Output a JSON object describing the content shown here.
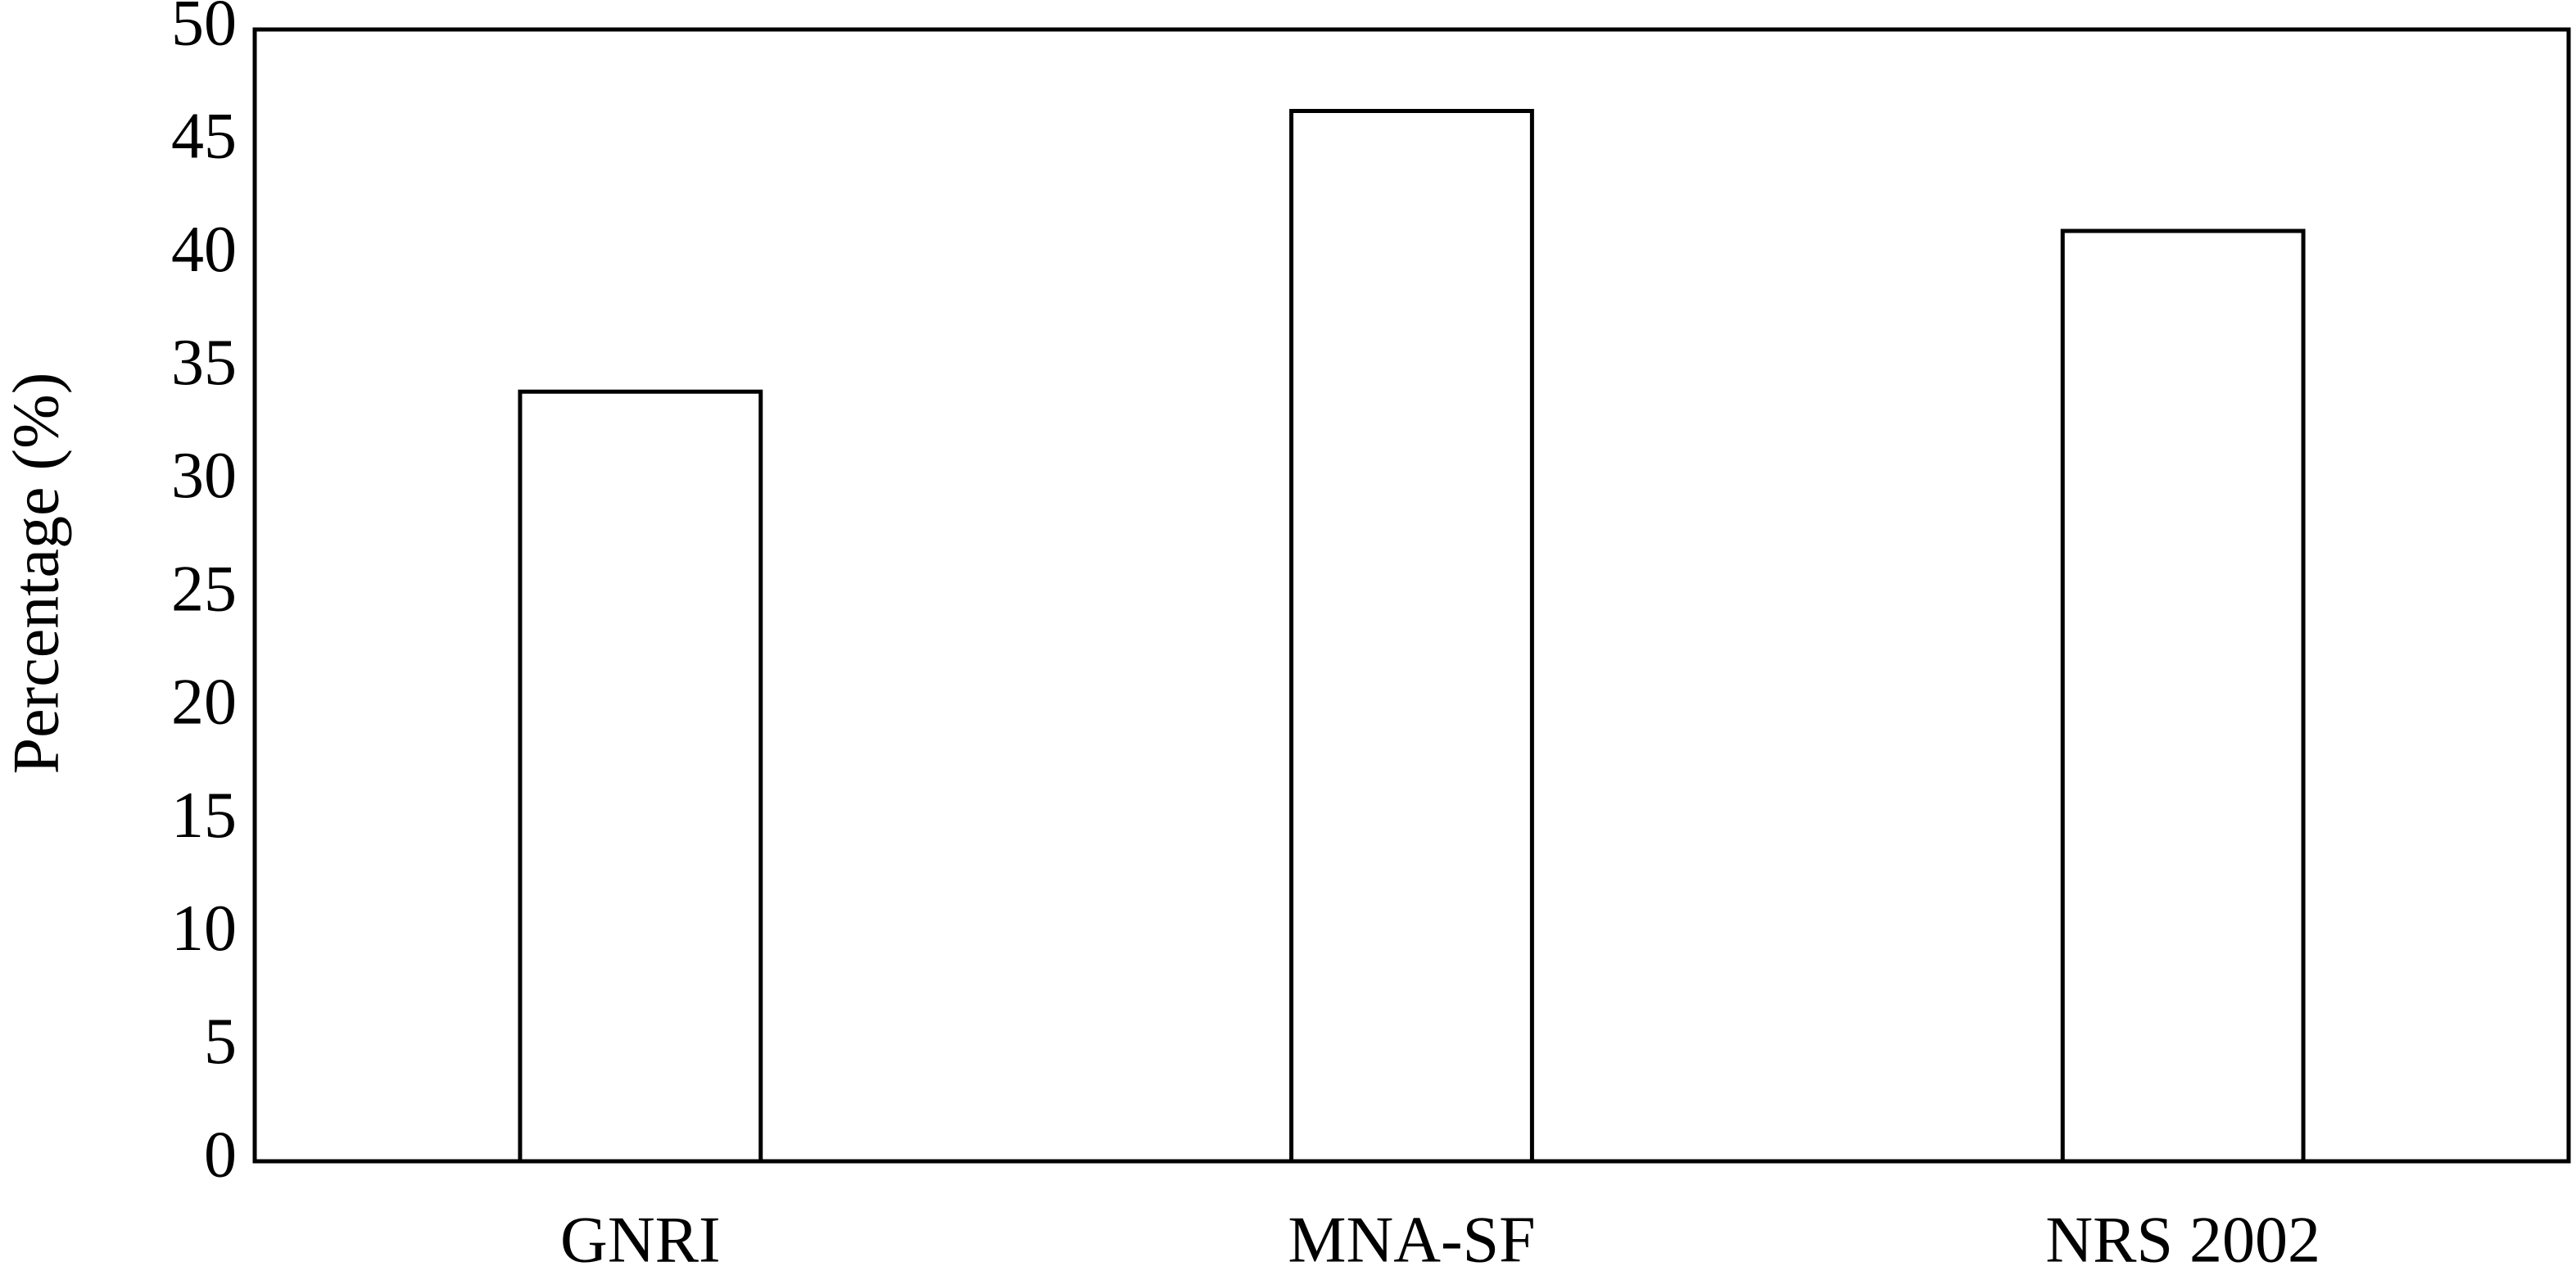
{
  "chart_data": {
    "type": "bar",
    "ylabel": "Percentage (%)",
    "categories": [
      "GNRI",
      "MNA-SF",
      "NRS 2002"
    ],
    "values": [
      34,
      46.4,
      41.1
    ],
    "color": "#ffffff",
    "edgecolor": "#000000",
    "ylim": [
      0,
      50
    ],
    "yticks": [
      0,
      5,
      10,
      15,
      20,
      25,
      30,
      35,
      40,
      45,
      50
    ],
    "grid": false
  }
}
